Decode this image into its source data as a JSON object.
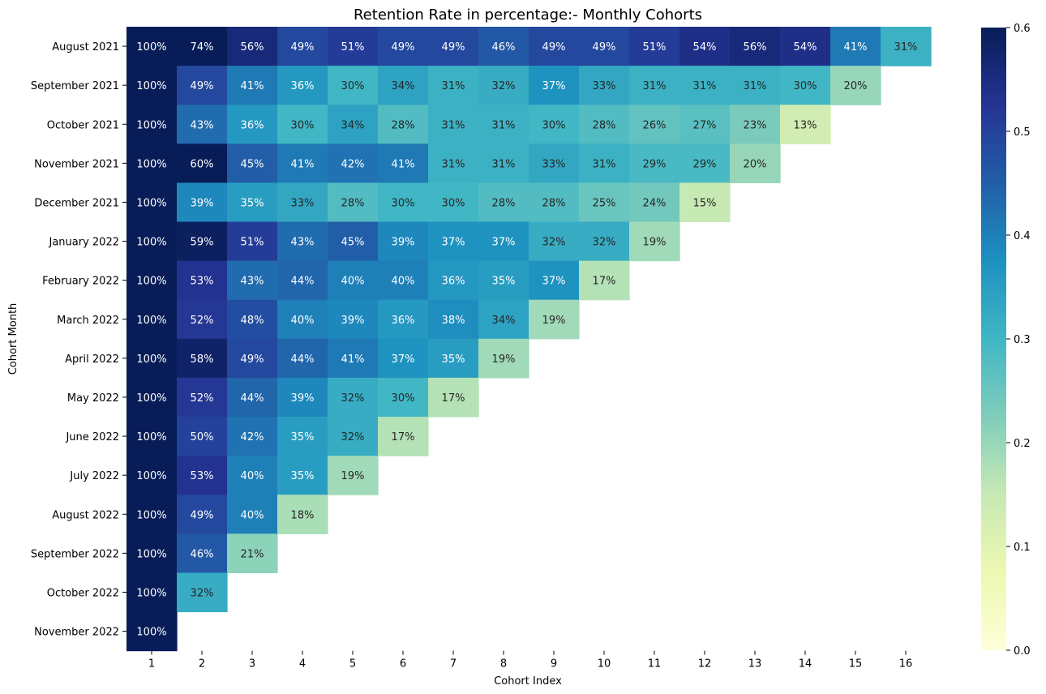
{
  "chart_data": {
    "type": "heatmap",
    "title": "Retention Rate in percentage:- Monthly Cohorts",
    "xlabel": "Cohort Index",
    "ylabel": "Cohort Month",
    "x_categories": [
      "1",
      "2",
      "3",
      "4",
      "5",
      "6",
      "7",
      "8",
      "9",
      "10",
      "11",
      "12",
      "13",
      "14",
      "15",
      "16"
    ],
    "y_categories": [
      "August 2021",
      "September 2021",
      "October 2021",
      "November 2021",
      "December 2021",
      "January 2022",
      "February 2022",
      "March 2022",
      "April 2022",
      "May 2022",
      "June 2022",
      "July 2022",
      "August 2022",
      "September 2022",
      "October 2022",
      "November 2022"
    ],
    "values": [
      [
        1.0,
        0.74,
        0.56,
        0.49,
        0.51,
        0.49,
        0.49,
        0.46,
        0.49,
        0.49,
        0.51,
        0.54,
        0.56,
        0.54,
        0.41,
        0.31
      ],
      [
        1.0,
        0.49,
        0.41,
        0.36,
        0.3,
        0.34,
        0.31,
        0.32,
        0.37,
        0.33,
        0.31,
        0.31,
        0.31,
        0.3,
        0.2
      ],
      [
        1.0,
        0.43,
        0.36,
        0.3,
        0.34,
        0.28,
        0.31,
        0.31,
        0.3,
        0.28,
        0.26,
        0.27,
        0.23,
        0.13
      ],
      [
        1.0,
        0.6,
        0.45,
        0.41,
        0.42,
        0.41,
        0.31,
        0.31,
        0.33,
        0.31,
        0.29,
        0.29,
        0.2
      ],
      [
        1.0,
        0.39,
        0.35,
        0.33,
        0.28,
        0.3,
        0.3,
        0.28,
        0.28,
        0.25,
        0.24,
        0.15
      ],
      [
        1.0,
        0.59,
        0.51,
        0.43,
        0.45,
        0.39,
        0.37,
        0.37,
        0.32,
        0.32,
        0.19
      ],
      [
        1.0,
        0.53,
        0.43,
        0.44,
        0.4,
        0.4,
        0.36,
        0.35,
        0.37,
        0.17
      ],
      [
        1.0,
        0.52,
        0.48,
        0.4,
        0.39,
        0.36,
        0.38,
        0.34,
        0.19
      ],
      [
        1.0,
        0.58,
        0.49,
        0.44,
        0.41,
        0.37,
        0.35,
        0.19
      ],
      [
        1.0,
        0.52,
        0.44,
        0.39,
        0.32,
        0.3,
        0.17
      ],
      [
        1.0,
        0.5,
        0.42,
        0.35,
        0.32,
        0.17
      ],
      [
        1.0,
        0.53,
        0.4,
        0.35,
        0.19
      ],
      [
        1.0,
        0.49,
        0.4,
        0.18
      ],
      [
        1.0,
        0.46,
        0.21
      ],
      [
        1.0,
        0.32
      ],
      [
        1.0
      ]
    ],
    "cell_labels": [
      [
        "100%",
        "74%",
        "56%",
        "49%",
        "51%",
        "49%",
        "49%",
        "46%",
        "49%",
        "49%",
        "51%",
        "54%",
        "56%",
        "54%",
        "41%",
        "31%"
      ],
      [
        "100%",
        "49%",
        "41%",
        "36%",
        "30%",
        "34%",
        "31%",
        "32%",
        "37%",
        "33%",
        "31%",
        "31%",
        "31%",
        "30%",
        "20%"
      ],
      [
        "100%",
        "43%",
        "36%",
        "30%",
        "34%",
        "28%",
        "31%",
        "31%",
        "30%",
        "28%",
        "26%",
        "27%",
        "23%",
        "13%"
      ],
      [
        "100%",
        "60%",
        "45%",
        "41%",
        "42%",
        "41%",
        "31%",
        "31%",
        "33%",
        "31%",
        "29%",
        "29%",
        "20%"
      ],
      [
        "100%",
        "39%",
        "35%",
        "33%",
        "28%",
        "30%",
        "30%",
        "28%",
        "28%",
        "25%",
        "24%",
        "15%"
      ],
      [
        "100%",
        "59%",
        "51%",
        "43%",
        "45%",
        "39%",
        "37%",
        "37%",
        "32%",
        "32%",
        "19%"
      ],
      [
        "100%",
        "53%",
        "43%",
        "44%",
        "40%",
        "40%",
        "36%",
        "35%",
        "37%",
        "17%"
      ],
      [
        "100%",
        "52%",
        "48%",
        "40%",
        "39%",
        "36%",
        "38%",
        "34%",
        "19%"
      ],
      [
        "100%",
        "58%",
        "49%",
        "44%",
        "41%",
        "37%",
        "35%",
        "19%"
      ],
      [
        "100%",
        "52%",
        "44%",
        "39%",
        "32%",
        "30%",
        "17%"
      ],
      [
        "100%",
        "50%",
        "42%",
        "35%",
        "32%",
        "17%"
      ],
      [
        "100%",
        "53%",
        "40%",
        "35%",
        "19%"
      ],
      [
        "100%",
        "49%",
        "40%",
        "18%"
      ],
      [
        "100%",
        "46%",
        "21%"
      ],
      [
        "100%",
        "32%"
      ],
      [
        "100%"
      ]
    ],
    "vmin": 0.0,
    "vmax": 0.6,
    "colormap": "YlGnBu",
    "colorbar_ticks": [
      "0.0",
      "0.1",
      "0.2",
      "0.3",
      "0.4",
      "0.5",
      "0.6"
    ],
    "colormap_stops": [
      "#ffffd9",
      "#edf8b1",
      "#c7e9b4",
      "#7fcdbb",
      "#41b6c4",
      "#1d91c0",
      "#225ea8",
      "#253494",
      "#081d58"
    ],
    "grid": false
  }
}
